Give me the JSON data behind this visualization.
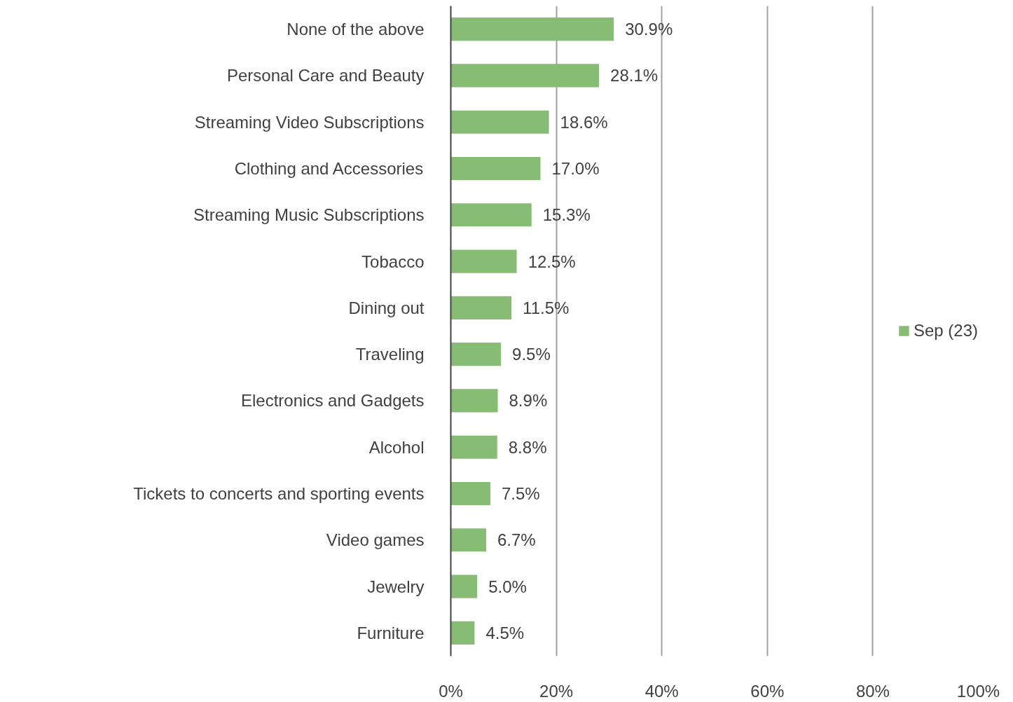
{
  "chart_data": {
    "type": "bar",
    "orientation": "horizontal",
    "categories": [
      "None of the above",
      "Personal Care and Beauty",
      "Streaming Video Subscriptions",
      "Clothing and Accessories",
      "Streaming Music Subscriptions",
      "Tobacco",
      "Dining out",
      "Traveling",
      "Electronics and Gadgets",
      "Alcohol",
      "Tickets to concerts and sporting events",
      "Video games",
      "Jewelry",
      "Furniture"
    ],
    "series": [
      {
        "name": "Sep (23)",
        "color": "#86bc73",
        "values": [
          30.9,
          28.1,
          18.6,
          17.0,
          15.3,
          12.5,
          11.5,
          9.5,
          8.9,
          8.8,
          7.5,
          6.7,
          5.0,
          4.5
        ],
        "value_labels": [
          "30.9%",
          "28.1%",
          "18.6%",
          "17.0%",
          "15.3%",
          "12.5%",
          "11.5%",
          "9.5%",
          "8.9%",
          "8.8%",
          "7.5%",
          "6.7%",
          "5.0%",
          "4.5%"
        ]
      }
    ],
    "xlim": [
      0,
      100
    ],
    "xticks": [
      {
        "value": 0,
        "label": "0%"
      },
      {
        "value": 20,
        "label": "20%"
      },
      {
        "value": 40,
        "label": "40%"
      },
      {
        "value": 60,
        "label": "60%"
      },
      {
        "value": 80,
        "label": "80%"
      },
      {
        "value": 100,
        "label": "100%"
      }
    ],
    "grid": "x",
    "legend": "right"
  }
}
